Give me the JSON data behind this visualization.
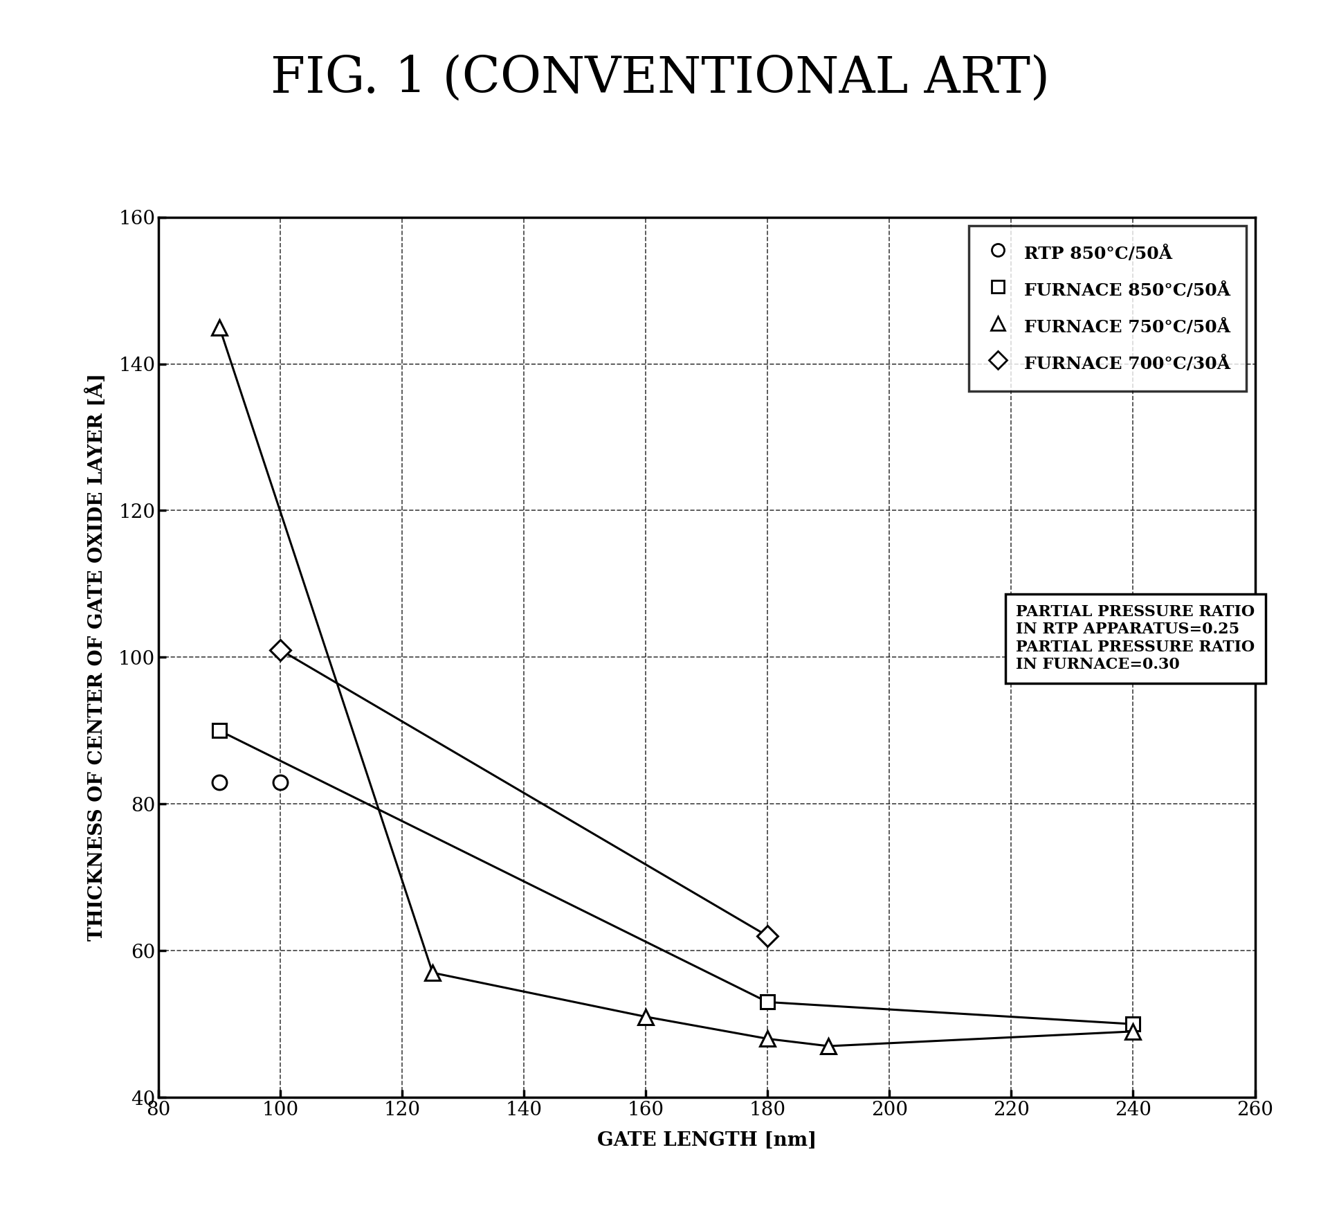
{
  "title": "FIG. 1 (CONVENTIONAL ART)",
  "xlabel": "GATE LENGTH [nm]",
  "ylabel": "THICKNESS OF CENTER OF GATE OXIDE LAYER [Å]",
  "xlim": [
    80,
    260
  ],
  "ylim": [
    40,
    160
  ],
  "xticks": [
    80,
    100,
    120,
    140,
    160,
    180,
    200,
    220,
    240,
    260
  ],
  "yticks": [
    40,
    60,
    80,
    100,
    120,
    140,
    160
  ],
  "series": [
    {
      "label": "RTP 850°C/50Å",
      "marker": "o",
      "x": [
        90,
        100
      ],
      "y": [
        83,
        83
      ],
      "connected": false
    },
    {
      "label": "FURNACE 850°C/50Å",
      "marker": "s",
      "x": [
        90,
        180,
        240
      ],
      "y": [
        90,
        53,
        50
      ],
      "connected": true
    },
    {
      "label": "FURNACE 750°C/50Å",
      "marker": "^",
      "x": [
        90,
        125,
        160,
        180,
        190,
        240
      ],
      "y": [
        145,
        57,
        51,
        48,
        47,
        49
      ],
      "connected": true
    },
    {
      "label": "FURNACE 700°C/30Å",
      "marker": "D",
      "x": [
        100,
        180
      ],
      "y": [
        101,
        62
      ],
      "connected": true
    }
  ],
  "legend_markers": [
    "o",
    "s",
    "^",
    "D"
  ],
  "note_line1": "PARTIAL PRESSURE RATIO",
  "note_line2": "IN RTP APPARATUS=0.25",
  "note_line3": "PARTIAL PRESSURE RATIO",
  "note_line4": "IN FURNACE=0.30",
  "background_color": "#ffffff",
  "line_color": "#000000",
  "title_fontsize": 52,
  "tick_fontsize": 20,
  "label_fontsize": 20,
  "legend_fontsize": 18,
  "note_fontsize": 16
}
